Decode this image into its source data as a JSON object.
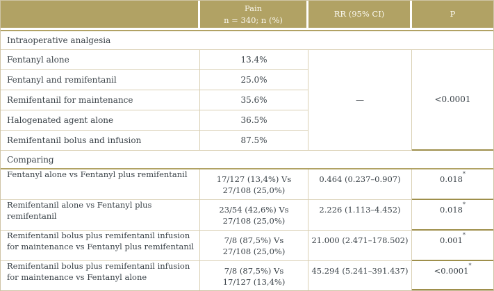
{
  "table": {
    "columns": {
      "col0": "",
      "col1": "Pain\nn = 340; n (%)",
      "col2": "RR (95% CI)",
      "col3": "P"
    },
    "intraoperative": {
      "title": "Intraoperative analgesia",
      "rows": [
        {
          "label": "Fentanyl alone",
          "pain": "13.4%"
        },
        {
          "label": "Fentanyl and remifentanil",
          "pain": "25.0%"
        },
        {
          "label": "Remifentanil for maintenance",
          "pain": "35.6%"
        },
        {
          "label": "Halogenated agent alone",
          "pain": "36.5%"
        },
        {
          "label": "Remifentanil bolus and infusion",
          "pain": "87.5%"
        }
      ],
      "rr_merged": "—",
      "p_merged": "<0.0001"
    },
    "comparing": {
      "title": "Comparing",
      "rows": [
        {
          "label": "Fentanyl alone vs Fentanyl plus remifentanil",
          "pain": "17/127 (13,4%) Vs\n27/108 (25,0%)",
          "rr": "0.464 (0.237–0.907)",
          "p": "0.018",
          "p_flag": "*"
        },
        {
          "label": "Remifentanil alone vs Fentanyl plus remifentanil",
          "pain": "23/54 (42,6%) Vs\n27/108 (25,0%)",
          "rr": "2.226 (1.113–4.452)",
          "p": "0.018",
          "p_flag": "*"
        },
        {
          "label": "Remifentanil bolus plus remifentanil infusion for maintenance vs Fentanyl plus remifentanil",
          "pain": "7/8 (87,5%) Vs\n27/108 (25,0%)",
          "rr": "21.000 (2.471–178.502)",
          "p": "0.001",
          "p_flag": "*"
        },
        {
          "label": "Remifentanil bolus plus remifentanil infusion for maintenance vs Fentanyl alone",
          "pain": "7/8 (87,5%) Vs\n17/127 (13,4%)",
          "rr": "45.294 (5.241–391.437)",
          "p": "<0.0001",
          "p_flag": "*"
        }
      ]
    },
    "colors": {
      "header_bg": "#b1a264",
      "header_text": "#f9f7ee",
      "grid_line": "#d9cfb3",
      "accent_line": "#9e8f4b",
      "text": "#3a4248"
    }
  }
}
